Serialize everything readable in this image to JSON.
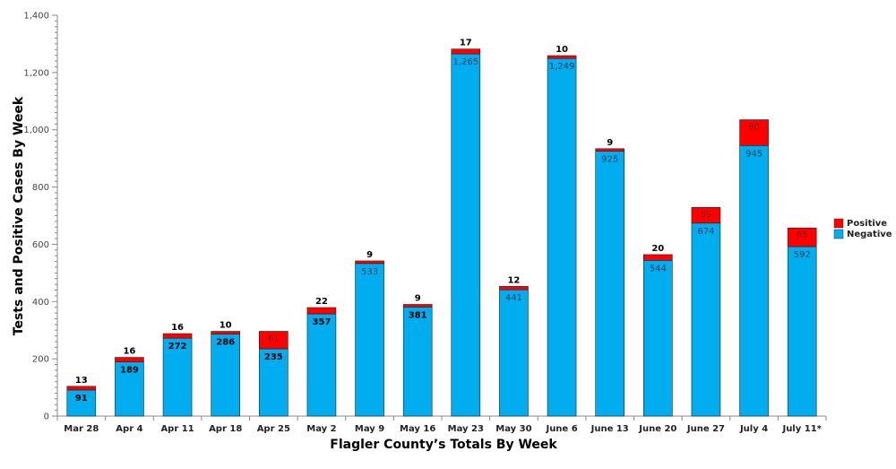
{
  "chart_data": {
    "type": "bar",
    "stacked": true,
    "title": "",
    "xlabel": "Flagler County’s Totals By Week",
    "ylabel": "Tests and Positive Cases By Week",
    "ylim": [
      0,
      1400
    ],
    "yticks": [
      0,
      200,
      400,
      600,
      800,
      1000,
      1200,
      1400
    ],
    "ytick_labels": [
      "0",
      "200",
      "400",
      "600",
      "800",
      "1,000",
      "1,200",
      "1,400"
    ],
    "grid": false,
    "legend_position": "right",
    "categories": [
      "Mar 28",
      "Apr 4",
      "Apr 11",
      "Apr 18",
      "Apr 25",
      "May 2",
      "May 9",
      "May 16",
      "May 23",
      "May 30",
      "June 6",
      "June 13",
      "June 20",
      "June 27",
      "July 4",
      "July 11*"
    ],
    "series": [
      {
        "name": "Negative",
        "color": "#00aeef",
        "values": [
          91,
          189,
          272,
          286,
          235,
          357,
          533,
          381,
          1265,
          441,
          1249,
          925,
          544,
          674,
          945,
          592
        ],
        "labels": [
          "91",
          "189",
          "272",
          "286",
          "235",
          "357",
          "533",
          "381",
          "1,265",
          "441",
          "1,249",
          "925",
          "544",
          "674",
          "945",
          "592"
        ]
      },
      {
        "name": "Positive",
        "color": "#ff0000",
        "values": [
          13,
          16,
          16,
          10,
          61,
          22,
          9,
          9,
          17,
          12,
          10,
          9,
          20,
          55,
          90,
          65
        ],
        "labels": [
          "13",
          "16",
          "16",
          "10",
          "61",
          "22",
          "9",
          "9",
          "17",
          "12",
          "10",
          "9",
          "20",
          "55",
          "90",
          "65"
        ]
      }
    ],
    "legend": [
      "Positive",
      "Negative"
    ]
  }
}
